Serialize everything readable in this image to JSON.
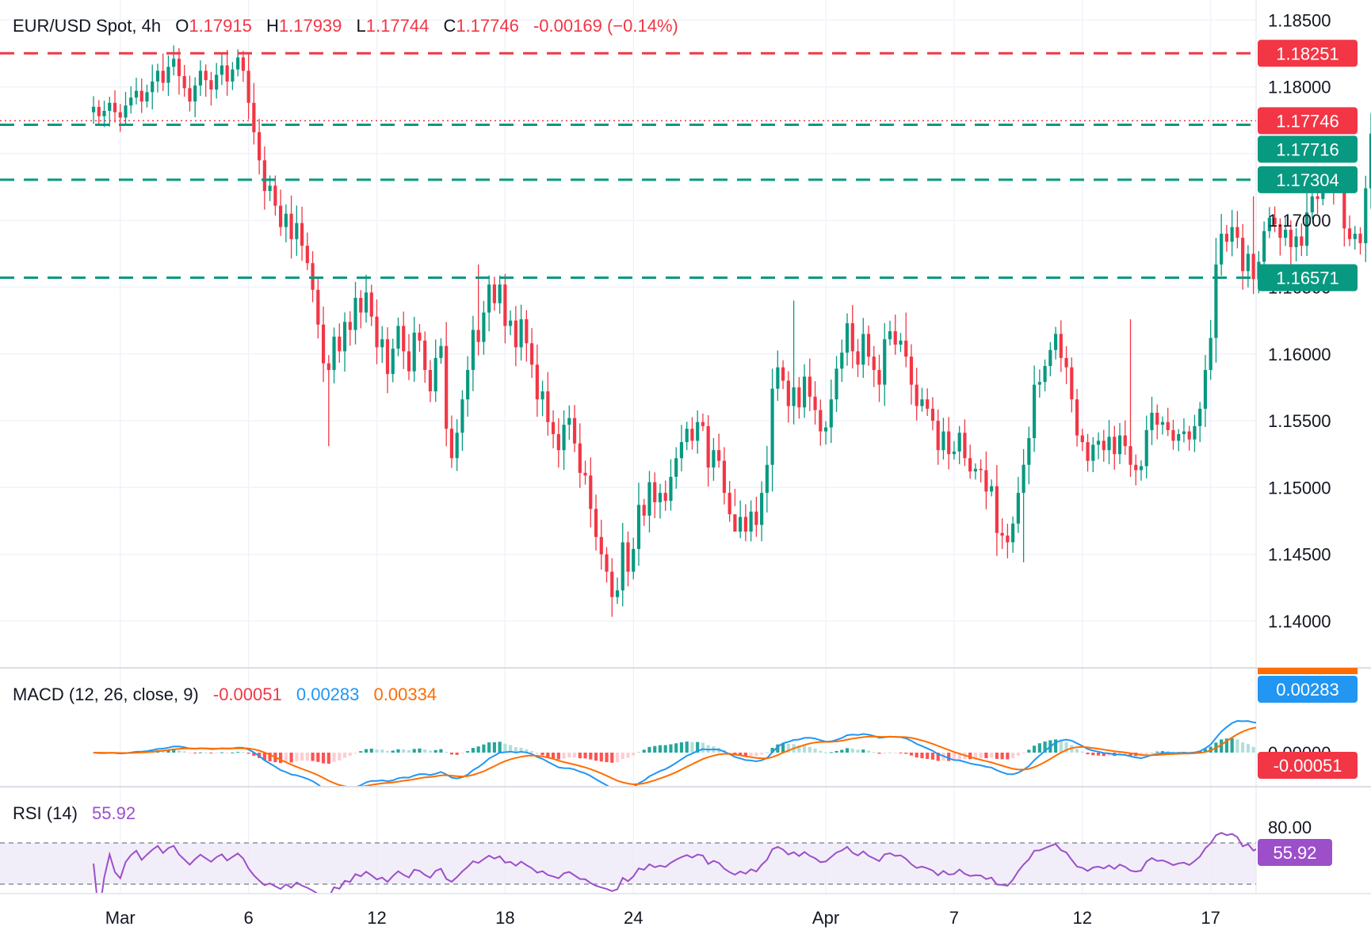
{
  "chart_data": [
    {
      "type": "candlestick",
      "legend": {
        "symbol": "EUR/USD Spot, 4h",
        "open_label": "O",
        "open": "1.17915",
        "high_label": "H",
        "high": "1.17939",
        "low_label": "L",
        "low": "1.17744",
        "close_label": "C",
        "close": "1.17746",
        "change": "-0.00169 (−0.14%)"
      },
      "y_ticks": [
        1.14,
        1.145,
        1.15,
        1.155,
        1.16,
        1.165,
        1.17,
        1.175,
        1.18,
        1.185
      ],
      "y_tick_labels": [
        "1.14000",
        "1.14500",
        "1.15000",
        "1.15500",
        "1.16000",
        "1.16500",
        "1.17000",
        "",
        "1.18000",
        "1.18500"
      ],
      "ylim": [
        1.1365,
        1.1865
      ],
      "x_tick_labels": [
        "Mar",
        "6",
        "12",
        "18",
        "24",
        "Apr",
        "7",
        "12",
        "17"
      ],
      "x_tick_positions": [
        5,
        29,
        53,
        77,
        101,
        137,
        161,
        185,
        209
      ],
      "xlim": [
        -17.5,
        217.5
      ],
      "grid": true,
      "levels": [
        {
          "value": 1.18251,
          "label": "1.18251",
          "kind": "resistance",
          "color": "#f23645"
        },
        {
          "value": 1.17716,
          "label": "1.17716",
          "kind": "support",
          "color": "#089981"
        },
        {
          "value": 1.17304,
          "label": "1.17304",
          "kind": "support",
          "color": "#089981"
        },
        {
          "value": 1.16571,
          "label": "1.16571",
          "kind": "support",
          "color": "#089981"
        }
      ],
      "last_price": {
        "value": 1.17746,
        "label": "1.17746",
        "color": "#f23645"
      },
      "closes": [
        1.1785,
        1.1778,
        1.1782,
        1.1788,
        1.1781,
        1.1777,
        1.1786,
        1.1792,
        1.1797,
        1.1789,
        1.1796,
        1.1804,
        1.1812,
        1.1803,
        1.1815,
        1.1821,
        1.1808,
        1.1799,
        1.1789,
        1.1801,
        1.1812,
        1.1805,
        1.1798,
        1.1809,
        1.1816,
        1.1804,
        1.1813,
        1.1822,
        1.1812,
        1.1788,
        1.1766,
        1.1745,
        1.1722,
        1.1726,
        1.1711,
        1.1695,
        1.1705,
        1.1686,
        1.1698,
        1.1681,
        1.1668,
        1.1648,
        1.1622,
        1.1593,
        1.1588,
        1.1613,
        1.1602,
        1.1624,
        1.1618,
        1.1642,
        1.1631,
        1.1646,
        1.1628,
        1.1605,
        1.1611,
        1.1585,
        1.1604,
        1.1621,
        1.1602,
        1.1587,
        1.1616,
        1.161,
        1.1588,
        1.1572,
        1.1597,
        1.1606,
        1.1544,
        1.1522,
        1.1541,
        1.1566,
        1.1588,
        1.1618,
        1.1609,
        1.1631,
        1.1652,
        1.1638,
        1.1652,
        1.1621,
        1.1625,
        1.1605,
        1.1626,
        1.1608,
        1.1592,
        1.1566,
        1.1572,
        1.1549,
        1.154,
        1.1528,
        1.1547,
        1.1552,
        1.1533,
        1.1511,
        1.1509,
        1.1484,
        1.1463,
        1.145,
        1.1437,
        1.1418,
        1.1423,
        1.1459,
        1.1437,
        1.1454,
        1.1487,
        1.1479,
        1.1504,
        1.1489,
        1.1496,
        1.149,
        1.1508,
        1.1522,
        1.1534,
        1.1544,
        1.1535,
        1.1549,
        1.1546,
        1.1515,
        1.1528,
        1.152,
        1.1496,
        1.148,
        1.1467,
        1.1478,
        1.1467,
        1.1482,
        1.1472,
        1.1496,
        1.1517,
        1.1574,
        1.159,
        1.158,
        1.1561,
        1.1575,
        1.156,
        1.1583,
        1.1568,
        1.1558,
        1.1542,
        1.1545,
        1.1566,
        1.1589,
        1.1601,
        1.1623,
        1.1602,
        1.1592,
        1.1615,
        1.1598,
        1.1588,
        1.1577,
        1.1611,
        1.1617,
        1.1607,
        1.161,
        1.1598,
        1.1577,
        1.1561,
        1.1566,
        1.1559,
        1.155,
        1.1528,
        1.1542,
        1.1525,
        1.1527,
        1.1541,
        1.1522,
        1.1512,
        1.1514,
        1.1513,
        1.1497,
        1.1501,
        1.1466,
        1.1464,
        1.1459,
        1.1473,
        1.1496,
        1.1517,
        1.1537,
        1.1577,
        1.1579,
        1.1591,
        1.1603,
        1.1615,
        1.1597,
        1.159,
        1.1566,
        1.1539,
        1.1534,
        1.152,
        1.1532,
        1.1535,
        1.1528,
        1.1538,
        1.1525,
        1.1539,
        1.1531,
        1.1517,
        1.1513,
        1.1516,
        1.1543,
        1.1556,
        1.1547,
        1.1549,
        1.1543,
        1.1535,
        1.154,
        1.1542,
        1.1536,
        1.1546,
        1.1559,
        1.1588,
        1.1612,
        1.1667,
        1.169,
        1.1684,
        1.1695,
        1.1687,
        1.1662,
        1.1675,
        1.1656,
        1.1669,
        1.1692,
        1.1702,
        1.1697,
        1.1687,
        1.1693,
        1.168,
        1.1688,
        1.1681,
        1.1706,
        1.1718,
        1.1716,
        1.1727,
        1.1733,
        1.1725,
        1.173,
        1.1694,
        1.1686,
        1.169,
        1.1683,
        1.1724,
        1.1765,
        1.1769,
        1.1779,
        1.1794,
        1.1806,
        1.1795,
        1.1802,
        1.1806,
        1.1795,
        1.1791,
        1.1794,
        1.179,
        1.1786,
        1.1797,
        1.1803,
        1.18,
        1.1815,
        1.1791,
        1.1775
      ],
      "series": [
        {
          "name": "up",
          "color": "#089981"
        },
        {
          "name": "down",
          "color": "#f23645"
        }
      ]
    },
    {
      "type": "bar+line",
      "title": "MACD (12, 26, close, 9)",
      "values_text": {
        "histogram": "-0.00051",
        "macd": "0.00283",
        "signal": "0.00334"
      },
      "axis_labels": [
        "0.00000"
      ],
      "tags": [
        {
          "label": "0.00283",
          "color": "#2196f3"
        },
        {
          "label": "-0.00051",
          "color": "#f23645"
        }
      ],
      "series": [
        {
          "name": "MACD",
          "color": "#2196f3"
        },
        {
          "name": "Signal",
          "color": "#ff6d00"
        },
        {
          "name": "Histogram",
          "color_up": "#089981",
          "color_down": "#f23645"
        }
      ]
    },
    {
      "type": "line",
      "title": "RSI (14)",
      "value_text": "55.92",
      "axis_labels": [
        "80.00"
      ],
      "bands": [
        70,
        30
      ],
      "tag": {
        "label": "55.92",
        "color": "#9c4fc9"
      },
      "series": [
        {
          "name": "RSI",
          "color": "#9c4fc9"
        }
      ]
    }
  ]
}
